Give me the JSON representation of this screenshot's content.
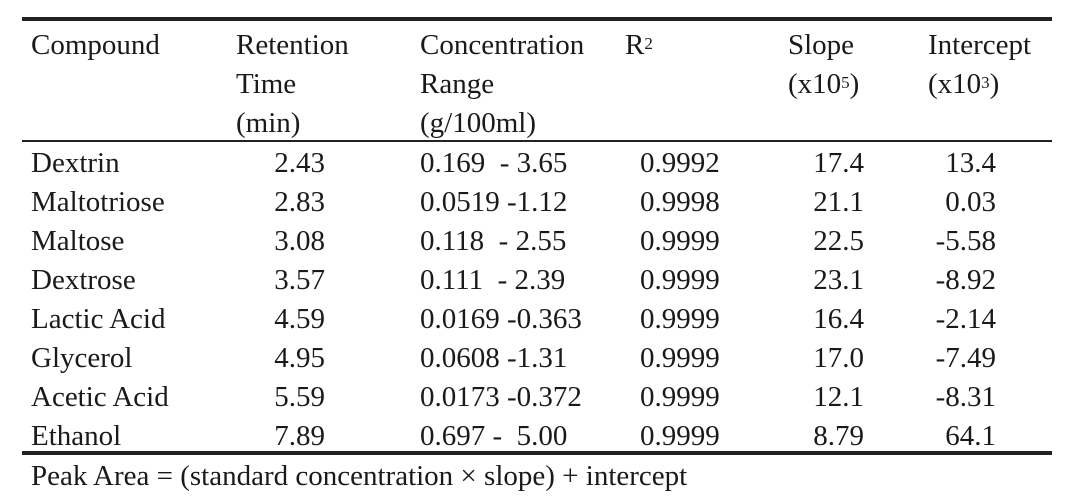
{
  "table": {
    "headers": {
      "compound": [
        "Compound"
      ],
      "retention_time": [
        "Retention",
        "Time",
        "(min)"
      ],
      "concentration_range": [
        "Concentration",
        "Range",
        "(g/100ml)"
      ],
      "r2": {
        "base": "R",
        "sup": "2"
      },
      "slope": {
        "line1": "Slope",
        "line2_base": "(x10",
        "line2_sup": "5",
        "line2_end": ")"
      },
      "intercept": {
        "line1": "Intercept",
        "line2_base": "(x10",
        "line2_sup": "3",
        "line2_end": ")"
      }
    },
    "rows": [
      {
        "compound": "Dextrin",
        "retention_time": "2.43",
        "range": "0.169  - 3.65",
        "r2": "0.9992",
        "slope": "17.4",
        "intercept": "13.4"
      },
      {
        "compound": "Maltotriose",
        "retention_time": "2.83",
        "range": "0.0519 -1.12",
        "r2": "0.9998",
        "slope": "21.1",
        "intercept": "0.03"
      },
      {
        "compound": "Maltose",
        "retention_time": "3.08",
        "range": "0.118  - 2.55",
        "r2": "0.9999",
        "slope": "22.5",
        "intercept": "-5.58"
      },
      {
        "compound": "Dextrose",
        "retention_time": "3.57",
        "range": "0.111  - 2.39",
        "r2": "0.9999",
        "slope": "23.1",
        "intercept": "-8.92"
      },
      {
        "compound": "Lactic Acid",
        "retention_time": "4.59",
        "range": "0.0169 -0.363",
        "r2": "0.9999",
        "slope": "16.4",
        "intercept": "-2.14"
      },
      {
        "compound": "Glycerol",
        "retention_time": "4.95",
        "range": "0.0608 -1.31",
        "r2": "0.9999",
        "slope": "17.0",
        "intercept": "-7.49"
      },
      {
        "compound": "Acetic Acid",
        "retention_time": "5.59",
        "range": "0.0173 -0.372",
        "r2": "0.9999",
        "slope": "12.1",
        "intercept": "-8.31"
      },
      {
        "compound": "Ethanol",
        "retention_time": "7.89",
        "range": "0.697 -  5.00",
        "r2": "0.9999",
        "slope": "8.79",
        "intercept": "64.1"
      }
    ]
  },
  "footnote": "Peak Area = (standard concentration × slope) + intercept"
}
